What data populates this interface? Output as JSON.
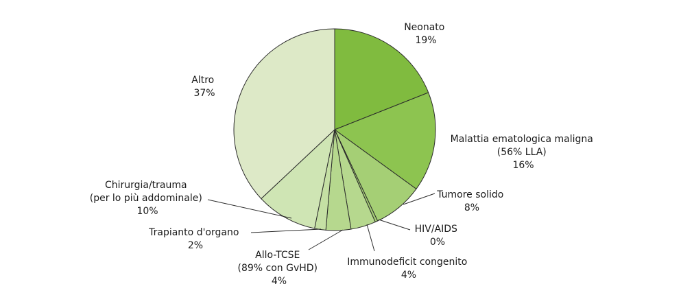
{
  "chart_data": {
    "type": "pie",
    "start_angle_deg": 0,
    "direction": "clockwise",
    "slices": [
      {
        "name": "Neonato",
        "display_lines": [
          "Neonato",
          "19%"
        ],
        "value": 19,
        "color": "#80bb3f"
      },
      {
        "name": "Malattia ematologica maligna (56% LLA)",
        "display_lines": [
          "Malattia ematologica maligna",
          "(56% LLA)",
          "16%"
        ],
        "value": 16,
        "color": "#8dc450"
      },
      {
        "name": "Tumore solido",
        "display_lines": [
          "Tumore solido",
          "8%"
        ],
        "value": 8,
        "color": "#a5cf75"
      },
      {
        "name": "HIV/AIDS",
        "display_lines": [
          "HIV/AIDS",
          "0%"
        ],
        "value": 0.4,
        "color": "#a5cf75"
      },
      {
        "name": "Immunodeficit congenito",
        "display_lines": [
          "Immunodeficit congenito",
          "4%"
        ],
        "value": 4,
        "color": "#b6d88e"
      },
      {
        "name": "Allo-TCSE (89% con GvHD)",
        "display_lines": [
          "Allo-TCSE",
          "(89% con GvHD)",
          "4%"
        ],
        "value": 4,
        "color": "#b6d88e"
      },
      {
        "name": "Trapianto d'organo",
        "display_lines": [
          "Trapianto d'organo",
          "2%"
        ],
        "value": 1.8,
        "color": "#c5e0a4"
      },
      {
        "name": "Chirurgia/trauma (per lo più addominale)",
        "display_lines": [
          "Chirurgia/trauma",
          "(per lo più addominale)",
          "10%"
        ],
        "value": 9.8,
        "color": "#cfe5b4"
      },
      {
        "name": "Altro",
        "display_lines": [
          "Altro",
          "37%"
        ],
        "value": 37,
        "color": "#dde9c7"
      }
    ]
  }
}
